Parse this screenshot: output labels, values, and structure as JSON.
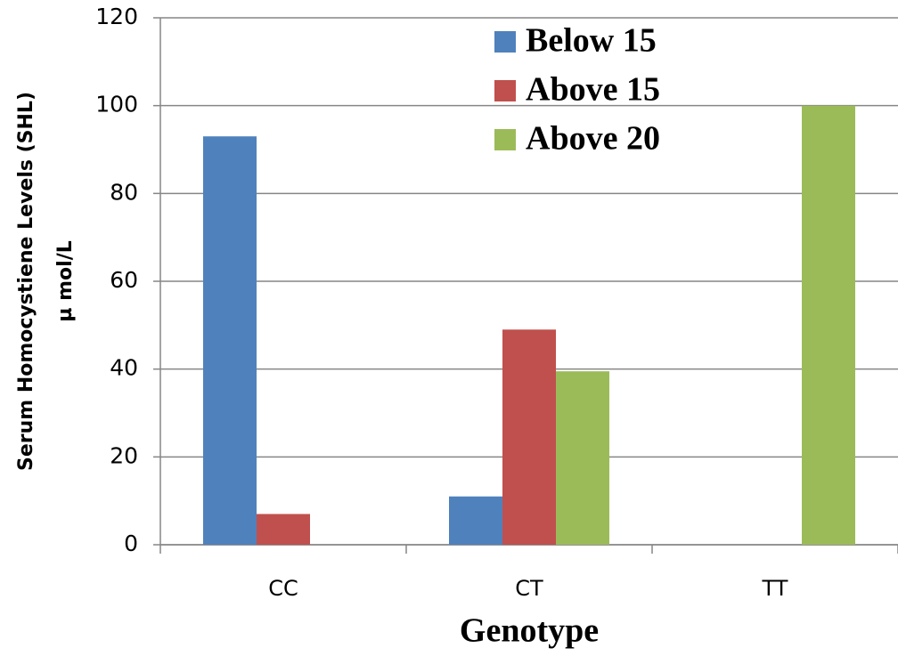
{
  "chart_data": {
    "type": "bar",
    "categories": [
      "CC",
      "CT",
      "TT"
    ],
    "series": [
      {
        "name": "Below 15",
        "color": "#4f81bd",
        "values": [
          93,
          11,
          0
        ]
      },
      {
        "name": "Above 15",
        "color": "#c0504d",
        "values": [
          7,
          49,
          0
        ]
      },
      {
        "name": "Above 20",
        "color": "#9bbb59",
        "values": [
          0,
          39.5,
          100
        ]
      }
    ],
    "xlabel": "Genotype",
    "ylabel": [
      "Serum Homocystiene Levels (SHL)",
      "µ mol/L"
    ],
    "ylim": [
      0,
      120
    ],
    "yticks": [
      0,
      20,
      40,
      60,
      80,
      100,
      120
    ],
    "grid": true
  }
}
